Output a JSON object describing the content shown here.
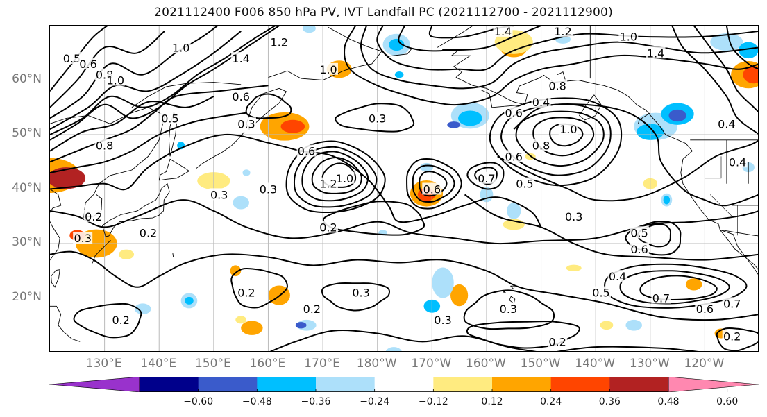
{
  "title": "2021112400 F006 850 hPa PV, IVT Landfall PC (2021112700 - 2021112900)",
  "lat_labels": [
    {
      "text": "60°N",
      "lat": 60
    },
    {
      "text": "50°N",
      "lat": 50
    },
    {
      "text": "40°N",
      "lat": 40
    },
    {
      "text": "30°N",
      "lat": 30
    },
    {
      "text": "20°N",
      "lat": 20
    }
  ],
  "lon_labels": [
    {
      "text": "130°E",
      "lon": 130
    },
    {
      "text": "140°E",
      "lon": 140
    },
    {
      "text": "150°E",
      "lon": 150
    },
    {
      "text": "160°E",
      "lon": 160
    },
    {
      "text": "170°E",
      "lon": 170
    },
    {
      "text": "180°W",
      "lon": 180
    },
    {
      "text": "170°W",
      "lon": 190
    },
    {
      "text": "160°W",
      "lon": 200
    },
    {
      "text": "150°W",
      "lon": 210
    },
    {
      "text": "140°W",
      "lon": 220
    },
    {
      "text": "130°W",
      "lon": 230
    },
    {
      "text": "120°W",
      "lon": 240
    }
  ],
  "map_extent": {
    "lon_min": 120,
    "lon_max": 250,
    "lat_min": 10,
    "lat_max": 70
  },
  "colorbar": {
    "bounds": [
      -0.6,
      -0.48,
      -0.36,
      -0.24,
      -0.12,
      0.12,
      0.24,
      0.36,
      0.48,
      0.6
    ],
    "tick_labels": [
      "−0.60",
      "−0.48",
      "−0.36",
      "−0.24",
      "−0.12",
      "0.12",
      "0.24",
      "0.36",
      "0.48",
      "0.60"
    ],
    "colors": [
      "#9932CC",
      "#00008B",
      "#3A5BCB",
      "#00BFFF",
      "#ADE0FA",
      "#FFFFFF",
      "#FFEB80",
      "#FFA500",
      "#FF4500",
      "#B22222",
      "#FF88B0"
    ],
    "extend": "both"
  },
  "contour_labels": [
    {
      "text": "0.5",
      "lon": 124,
      "lat": 64
    },
    {
      "text": "0.6",
      "lon": 127,
      "lat": 63
    },
    {
      "text": "0.8",
      "lon": 130,
      "lat": 61
    },
    {
      "text": "1.0",
      "lon": 132,
      "lat": 60
    },
    {
      "text": "1.0",
      "lon": 144,
      "lat": 66
    },
    {
      "text": "1.4",
      "lon": 155,
      "lat": 64
    },
    {
      "text": "1.2",
      "lon": 162,
      "lat": 67
    },
    {
      "text": "1.0",
      "lon": 171,
      "lat": 62
    },
    {
      "text": "0.6",
      "lon": 155,
      "lat": 57
    },
    {
      "text": "0.5",
      "lon": 142,
      "lat": 53
    },
    {
      "text": "0.3",
      "lon": 156,
      "lat": 52
    },
    {
      "text": "0.3",
      "lon": 180,
      "lat": 53
    },
    {
      "text": "0.8",
      "lon": 130,
      "lat": 48
    },
    {
      "text": "0.6",
      "lon": 167,
      "lat": 47
    },
    {
      "text": "1.0",
      "lon": 174,
      "lat": 42
    },
    {
      "text": "1.2",
      "lon": 171,
      "lat": 41
    },
    {
      "text": "0.3",
      "lon": 160,
      "lat": 40
    },
    {
      "text": "0.3",
      "lon": 151,
      "lat": 39
    },
    {
      "text": "0.2",
      "lon": 128,
      "lat": 35
    },
    {
      "text": "0.2",
      "lon": 138,
      "lat": 32
    },
    {
      "text": "0.3",
      "lon": 126,
      "lat": 31
    },
    {
      "text": "0.2",
      "lon": 171,
      "lat": 33
    },
    {
      "text": "0.6",
      "lon": 190,
      "lat": 40
    },
    {
      "text": "0.7",
      "lon": 200,
      "lat": 42
    },
    {
      "text": "0.5",
      "lon": 207,
      "lat": 41
    },
    {
      "text": "0.6",
      "lon": 205,
      "lat": 46
    },
    {
      "text": "0.8",
      "lon": 210,
      "lat": 48
    },
    {
      "text": "1.0",
      "lon": 215,
      "lat": 51
    },
    {
      "text": "0.6",
      "lon": 205,
      "lat": 54
    },
    {
      "text": "0.4",
      "lon": 210,
      "lat": 56
    },
    {
      "text": "0.8",
      "lon": 213,
      "lat": 59
    },
    {
      "text": "1.4",
      "lon": 203,
      "lat": 69
    },
    {
      "text": "1.2",
      "lon": 214,
      "lat": 69
    },
    {
      "text": "1.0",
      "lon": 226,
      "lat": 68
    },
    {
      "text": "1.4",
      "lon": 231,
      "lat": 65
    },
    {
      "text": "0.4",
      "lon": 244,
      "lat": 52
    },
    {
      "text": "0.4",
      "lon": 246,
      "lat": 45
    },
    {
      "text": "0.3",
      "lon": 216,
      "lat": 35
    },
    {
      "text": "0.5",
      "lon": 228,
      "lat": 32
    },
    {
      "text": "0.6",
      "lon": 228,
      "lat": 29
    },
    {
      "text": "0.4",
      "lon": 224,
      "lat": 24
    },
    {
      "text": "0.5",
      "lon": 221,
      "lat": 21
    },
    {
      "text": "0.7",
      "lon": 232,
      "lat": 20
    },
    {
      "text": "0.6",
      "lon": 240,
      "lat": 18
    },
    {
      "text": "0.7",
      "lon": 245,
      "lat": 19
    },
    {
      "text": "0.2",
      "lon": 156,
      "lat": 21
    },
    {
      "text": "0.2",
      "lon": 168,
      "lat": 18
    },
    {
      "text": "0.3",
      "lon": 177,
      "lat": 21
    },
    {
      "text": "0.3",
      "lon": 192,
      "lat": 16
    },
    {
      "text": "0.3",
      "lon": 204,
      "lat": 18
    },
    {
      "text": "0.2",
      "lon": 133,
      "lat": 16
    },
    {
      "text": "0.2",
      "lon": 213,
      "lat": 12
    },
    {
      "text": "0.2",
      "lon": 245,
      "lat": 13
    }
  ]
}
